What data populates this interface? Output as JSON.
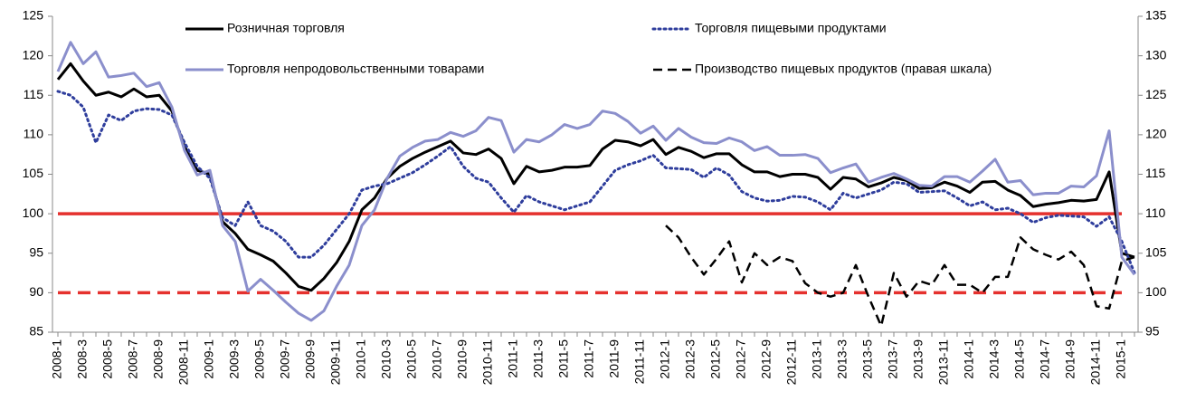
{
  "chart_data": {
    "type": "line",
    "categories": [
      "2008-1",
      null,
      "2008-3",
      null,
      "2008-5",
      null,
      "2008-7",
      null,
      "2008-9",
      null,
      "2008-11",
      null,
      "2009-1",
      null,
      "2009-3",
      null,
      "2009-5",
      null,
      "2009-7",
      null,
      "2009-9",
      null,
      "2009-11",
      null,
      "2010-1",
      null,
      "2010-3",
      null,
      "2010-5",
      null,
      "2010-7",
      null,
      "2010-9",
      null,
      "2010-11",
      null,
      "2011-1",
      null,
      "2011-3",
      null,
      "2011-5",
      null,
      "2011-7",
      null,
      "2011-9",
      null,
      "2011-11",
      null,
      "2012-1",
      null,
      "2012-3",
      null,
      "2012-5",
      null,
      "2012-7",
      null,
      "2012-9",
      null,
      "2012-11",
      null,
      "2013-1",
      null,
      "2013-3",
      null,
      "2013-5",
      null,
      "2013-7",
      null,
      "2013-9",
      null,
      "2013-11",
      null,
      "2014-1",
      null,
      "2014-3",
      null,
      "2014-5",
      null,
      "2014-7",
      null,
      "2014-9",
      null,
      "2014-11",
      null,
      "2015-1",
      null
    ],
    "series": [
      {
        "name": "Розничная торговля",
        "color": "#000000",
        "dash": "solid",
        "width": 3,
        "values": [
          117,
          119,
          116.8,
          115,
          115.4,
          114.8,
          115.8,
          114.8,
          115,
          113,
          108.5,
          105.5,
          105,
          99,
          97.5,
          95.5,
          94.8,
          94,
          92.5,
          90.8,
          90.3,
          91.8,
          93.8,
          96.5,
          100.5,
          102,
          104.5,
          106,
          107,
          107.8,
          108.5,
          109.2,
          107.7,
          107.5,
          108.2,
          107,
          103.8,
          106,
          105.3,
          105.5,
          105.9,
          105.9,
          106.1,
          108.2,
          109.3,
          109.1,
          108.6,
          109.4,
          107.5,
          108.4,
          107.9,
          107.1,
          107.6,
          107.6,
          106.2,
          105.3,
          105.3,
          104.7,
          105,
          105,
          104.6,
          103.1,
          104.6,
          104.4,
          103.4,
          103.9,
          104.6,
          104.2,
          103.2,
          103.3,
          104,
          103.5,
          102.7,
          104,
          104.1,
          103,
          102.3,
          100.9,
          101.2,
          101.4,
          101.7,
          101.6,
          101.8,
          105.3,
          95,
          94.5
        ]
      },
      {
        "name": "Торговля пищевыми продуктами",
        "color": "#2e3d9c",
        "dash": "dotted",
        "width": 3,
        "values": [
          115.5,
          115,
          113.5,
          109,
          112.5,
          111.8,
          113,
          113.3,
          113.2,
          112.5,
          109,
          106,
          104.5,
          99.5,
          98.5,
          101.5,
          98.5,
          97.8,
          96.5,
          94.5,
          94.5,
          96,
          98,
          100,
          103,
          103.5,
          103.8,
          104.5,
          105.2,
          106.2,
          107.3,
          108.5,
          106,
          104.5,
          104,
          102,
          100.2,
          102.3,
          101.5,
          101,
          100.5,
          101,
          101.5,
          103.5,
          105.5,
          106.2,
          106.7,
          107.4,
          105.8,
          105.7,
          105.6,
          104.6,
          105.8,
          104.9,
          102.8,
          102,
          101.6,
          101.7,
          102.2,
          102.1,
          101.5,
          100.5,
          102.6,
          102,
          102.5,
          103,
          104,
          103.8,
          102.7,
          102.8,
          102.9,
          102,
          101,
          101.5,
          100.5,
          100.7,
          100,
          98.9,
          99.5,
          99.8,
          99.7,
          99.6,
          98.4,
          99.6,
          96.5,
          92.5
        ]
      },
      {
        "name": "Торговля непродовольственными товарами",
        "color": "#8b8fcc",
        "dash": "solid",
        "width": 3,
        "values": [
          118,
          121.7,
          119,
          120.5,
          117.3,
          117.5,
          117.8,
          116.1,
          116.6,
          113.5,
          108,
          104.9,
          105.5,
          98.5,
          96.5,
          90.2,
          91.7,
          90.3,
          88.8,
          87.4,
          86.5,
          87.7,
          90.8,
          93.5,
          98.5,
          100.5,
          104.5,
          107.3,
          108.4,
          109.2,
          109.4,
          110.3,
          109.8,
          110.5,
          112.2,
          111.8,
          107.8,
          109.4,
          109.1,
          110,
          111.3,
          110.8,
          111.3,
          113,
          112.7,
          111.7,
          110.2,
          111.1,
          109.3,
          110.8,
          109.7,
          109,
          108.9,
          109.6,
          109.1,
          108,
          108.5,
          107.4,
          107.4,
          107.5,
          107,
          105.2,
          105.8,
          106.3,
          104,
          104.6,
          105.1,
          104.4,
          103.6,
          103.5,
          104.7,
          104.7,
          104,
          105.4,
          106.9,
          104,
          104.2,
          102.4,
          102.6,
          102.6,
          103.5,
          103.4,
          104.8,
          110.5,
          94.5,
          92.3
        ]
      },
      {
        "name": "Производство пищевых продуктов (правая шкала)",
        "color": "#000000",
        "dash": "dashed",
        "width": 2.5,
        "axis": "y2",
        "values": [
          null,
          null,
          null,
          null,
          null,
          null,
          null,
          null,
          null,
          null,
          null,
          null,
          null,
          null,
          null,
          null,
          null,
          null,
          null,
          null,
          null,
          null,
          null,
          null,
          null,
          null,
          null,
          null,
          null,
          null,
          null,
          null,
          null,
          null,
          null,
          null,
          null,
          null,
          null,
          null,
          null,
          null,
          null,
          null,
          null,
          null,
          null,
          null,
          108.5,
          107,
          104.5,
          102.3,
          104.3,
          106.5,
          101.3,
          105,
          103.5,
          104.5,
          104,
          101.2,
          100,
          99.5,
          100,
          103.5,
          99.5,
          95.8,
          102.5,
          99.5,
          101.5,
          101,
          103.5,
          101,
          101,
          100,
          102,
          102,
          107,
          105.5,
          104.8,
          104.2,
          105.2,
          103.5,
          98.3,
          98,
          104,
          104.5
        ]
      }
    ],
    "reference_lines": [
      {
        "value": 100,
        "axis": "y",
        "color": "#e5312e",
        "dash": "solid"
      },
      {
        "value": 100,
        "axis": "y2",
        "color": "#e5312e",
        "dash": "dashed"
      }
    ],
    "ylim": [
      85,
      125
    ],
    "yticks": [
      85,
      90,
      95,
      100,
      105,
      110,
      115,
      120,
      125
    ],
    "y2lim": [
      95,
      135
    ],
    "y2ticks": [
      95,
      100,
      105,
      110,
      115,
      120,
      125,
      130,
      135
    ],
    "grid": false
  }
}
